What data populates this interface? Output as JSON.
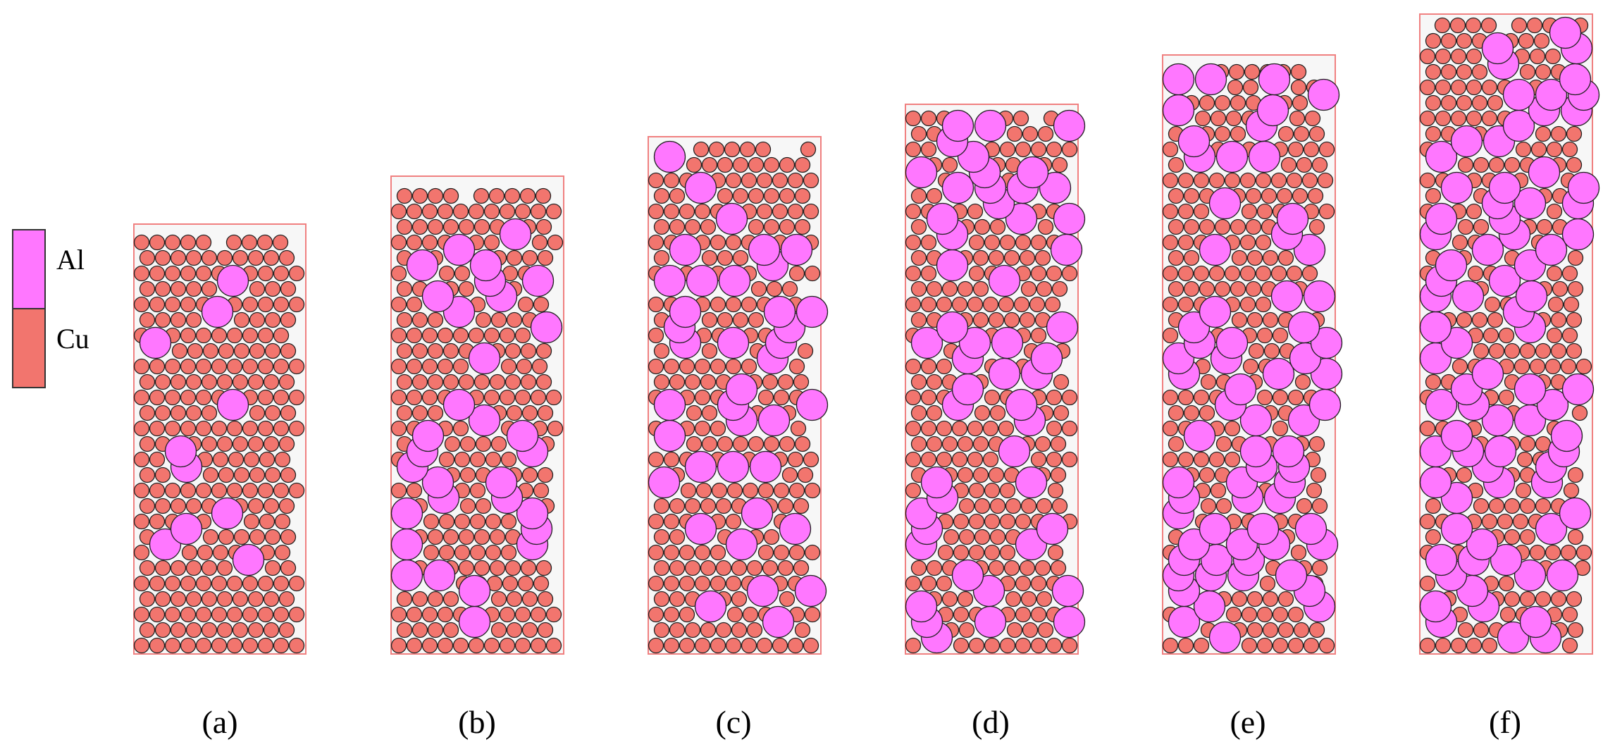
{
  "legend": {
    "items": [
      {
        "label": "Al",
        "color": "#ff77ff"
      },
      {
        "label": "Cu",
        "color": "#f2756e"
      }
    ]
  },
  "panels": [
    {
      "label": "(a)"
    },
    {
      "label": "(b)"
    },
    {
      "label": "(c)"
    },
    {
      "label": "(d)"
    },
    {
      "label": "(e)"
    },
    {
      "label": "(f)"
    }
  ],
  "colors": {
    "container_border": "#f08080",
    "particle_outline": "#222222",
    "container_fill": "#f7f7f7"
  }
}
